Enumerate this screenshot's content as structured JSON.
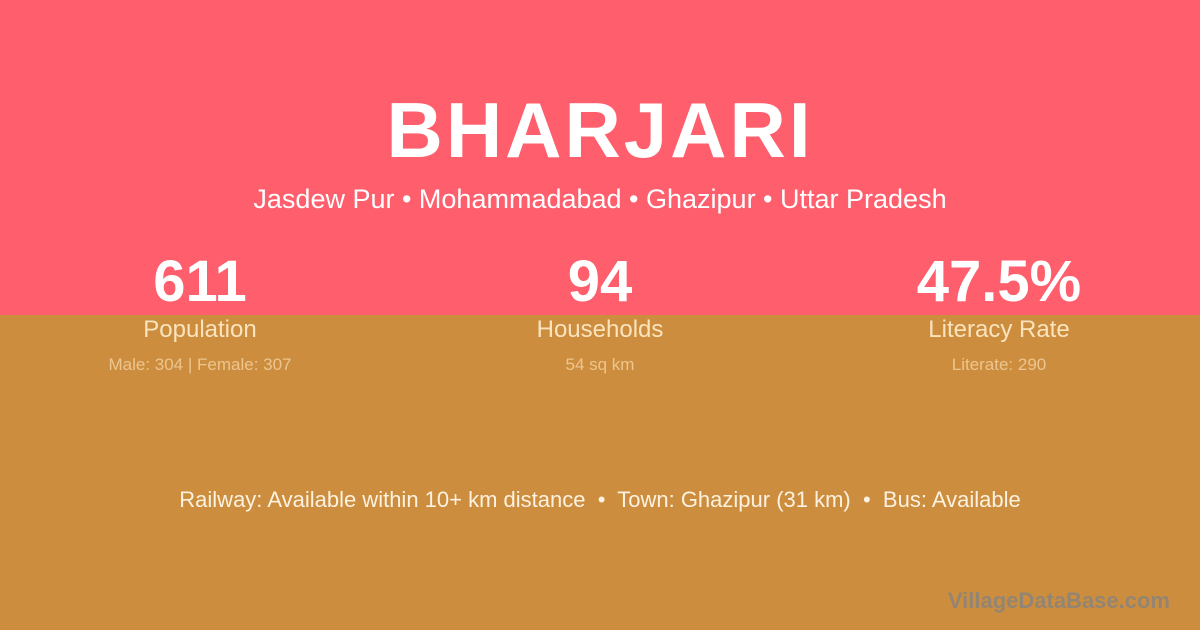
{
  "colors": {
    "top_band": "#FF5E6C",
    "bottom_band": "#CC8E3E"
  },
  "title": "BHARJARI",
  "breadcrumb": "Jasdew Pur • Mohammadabad • Ghazipur • Uttar Pradesh",
  "stats": [
    {
      "value": "611",
      "label": "Population",
      "sub": "Male: 304 | Female: 307"
    },
    {
      "value": "94",
      "label": "Households",
      "sub": "54 sq km"
    },
    {
      "value": "47.5%",
      "label": "Literacy Rate",
      "sub": "Literate: 290"
    }
  ],
  "info": "Railway: Available within 10+ km distance  •  Town: Ghazipur (31 km)  •  Bus: Available",
  "watermark": "VillageDataBase.com"
}
